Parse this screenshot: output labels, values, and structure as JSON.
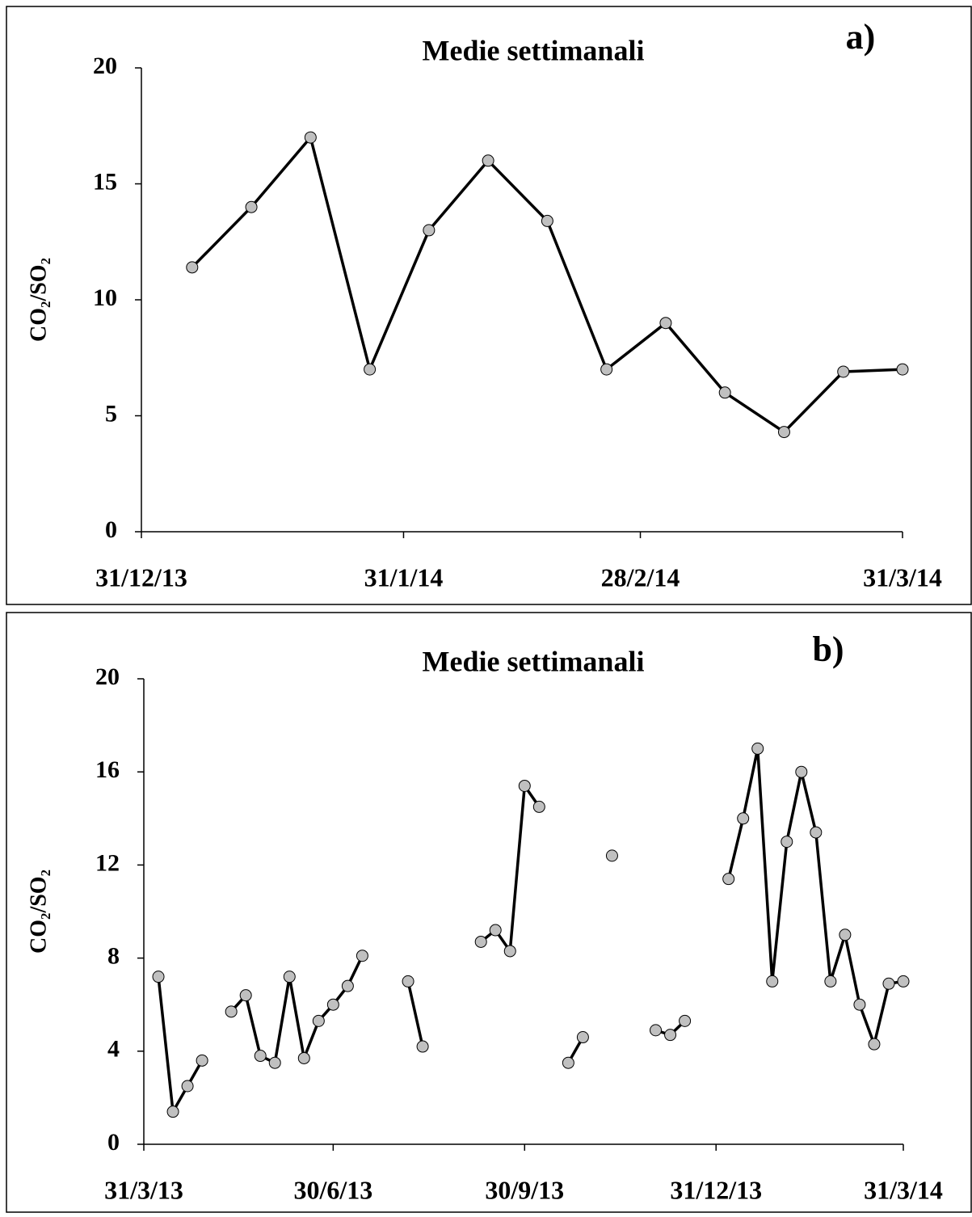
{
  "chart_data": [
    {
      "type": "line",
      "title": "Medie settimanali",
      "panel_label": "a)",
      "y_label": "CO₂/SO₂",
      "x": [
        "2014-01-06",
        "2014-01-13",
        "2014-01-20",
        "2014-01-27",
        "2014-02-03",
        "2014-02-10",
        "2014-02-17",
        "2014-02-24",
        "2014-03-03",
        "2014-03-10",
        "2014-03-17",
        "2014-03-24",
        "2014-03-31"
      ],
      "series": [
        {
          "name": "CO₂/SO₂",
          "color": "#c0c0c0",
          "values": [
            11.4,
            14.0,
            17.0,
            7.0,
            13.0,
            16.0,
            13.4,
            7.0,
            9.0,
            6.0,
            4.3,
            6.9,
            7.0
          ]
        }
      ],
      "xlim": [
        "2013-12-31",
        "2014-03-31"
      ],
      "xticks": [
        {
          "value": "2013-12-31",
          "label": "31/12/13"
        },
        {
          "value": "2014-01-31",
          "label": "31/1/14"
        },
        {
          "value": "2014-02-28",
          "label": "28/2/14"
        },
        {
          "value": "2014-03-31",
          "label": "31/3/14"
        }
      ],
      "ylim": [
        0,
        20
      ],
      "yticks": [
        0,
        5,
        10,
        15,
        20
      ],
      "grid": false
    },
    {
      "type": "line",
      "title": "Medie settimanali",
      "panel_label": "b)",
      "y_label": "CO₂/SO₂",
      "x": [
        "2013-04-07",
        "2013-04-14",
        "2013-04-21",
        "2013-04-28",
        "2013-05-05",
        "2013-05-12",
        "2013-05-19",
        "2013-05-26",
        "2013-06-02",
        "2013-06-09",
        "2013-06-16",
        "2013-06-23",
        "2013-06-30",
        "2013-07-07",
        "2013-07-14",
        "2013-07-21",
        "2013-08-05",
        "2013-08-12",
        "2013-08-19",
        "2013-09-09",
        "2013-09-16",
        "2013-09-23",
        "2013-09-30",
        "2013-10-07",
        "2013-10-14",
        "2013-10-21",
        "2013-10-28",
        "2013-11-04",
        "2013-11-11",
        "2013-11-18",
        "2013-12-02",
        "2013-12-09",
        "2013-12-16",
        "2013-12-23",
        "2014-01-06",
        "2014-01-13",
        "2014-01-20",
        "2014-01-27",
        "2014-02-03",
        "2014-02-10",
        "2014-02-17",
        "2014-02-24",
        "2014-03-03",
        "2014-03-10",
        "2014-03-17",
        "2014-03-24",
        "2014-03-31"
      ],
      "series": [
        {
          "name": "CO₂/SO₂",
          "color": "#c0c0c0",
          "values": [
            7.2,
            1.4,
            2.5,
            3.6,
            null,
            5.7,
            6.4,
            3.8,
            3.5,
            7.2,
            3.7,
            5.3,
            6.0,
            6.8,
            8.1,
            null,
            7.0,
            4.2,
            null,
            8.7,
            9.2,
            8.3,
            15.4,
            14.5,
            null,
            3.5,
            4.6,
            null,
            12.4,
            null,
            4.9,
            4.7,
            5.3,
            null,
            11.4,
            14.0,
            17.0,
            7.0,
            13.0,
            16.0,
            13.4,
            7.0,
            9.0,
            6.0,
            4.3,
            6.9,
            7.0
          ]
        }
      ],
      "xlim": [
        "2013-03-31",
        "2014-03-31"
      ],
      "xticks": [
        {
          "value": "2013-03-31",
          "label": "31/3/13"
        },
        {
          "value": "2013-06-30",
          "label": "30/6/13"
        },
        {
          "value": "2013-09-30",
          "label": "30/9/13"
        },
        {
          "value": "2013-12-31",
          "label": "31/12/13"
        },
        {
          "value": "2014-03-31",
          "label": "31/3/14"
        }
      ],
      "ylim": [
        0,
        20
      ],
      "yticks": [
        0,
        4,
        8,
        12,
        16,
        20
      ],
      "grid": false
    }
  ]
}
